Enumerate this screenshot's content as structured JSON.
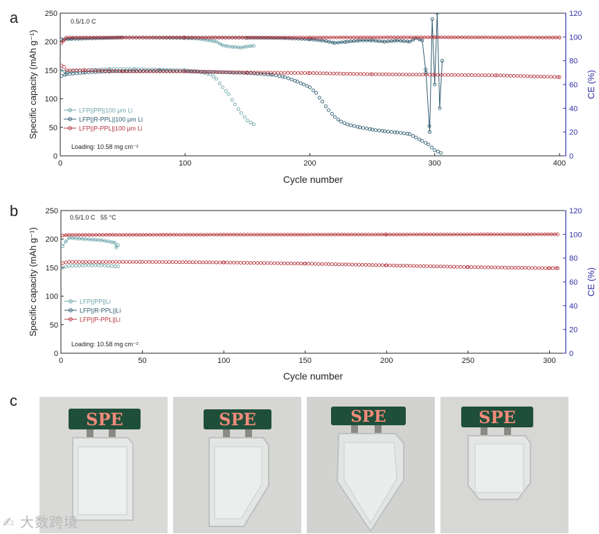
{
  "colors": {
    "pp": "#6aa3a8",
    "rppl": "#2d5a6e",
    "pppl": "#b5343c",
    "ce_axis": "#2f2fa8",
    "axis": "#222222"
  },
  "chart_data": [
    {
      "panel": "a",
      "type": "scatter",
      "xlabel": "Cycle number",
      "ylabel": "Specific capacity (mAh g⁻¹)",
      "y2label": "CE (%)",
      "xlim": [
        0,
        405
      ],
      "ylim": [
        0,
        250
      ],
      "y2lim": [
        0,
        120
      ],
      "xticks": [
        "0",
        "100",
        "200",
        "300",
        "400"
      ],
      "yticks": [
        "0",
        "50",
        "100",
        "150",
        "200",
        "250"
      ],
      "y2ticks": [
        "0",
        "20",
        "40",
        "60",
        "80",
        "100",
        "120"
      ],
      "annotation_rate": "0.5/1.0 C",
      "annotation_loading": "Loading: 10.58 mg cm⁻²",
      "series": [
        {
          "name": "LFP||PP||100 μm Li",
          "color_key": "pp",
          "capacity": [
            [
              1,
              150
            ],
            [
              5,
              147
            ],
            [
              20,
              150
            ],
            [
              40,
              152
            ],
            [
              60,
              152
            ],
            [
              80,
              151
            ],
            [
              100,
              150
            ],
            [
              110,
              148
            ],
            [
              120,
              143
            ],
            [
              125,
              135
            ],
            [
              130,
              120
            ],
            [
              135,
              108
            ],
            [
              140,
              90
            ],
            [
              145,
              75
            ],
            [
              150,
              62
            ],
            [
              155,
              55
            ]
          ],
          "ce": [
            [
              1,
              98
            ],
            [
              10,
              99
            ],
            [
              50,
              99.5
            ],
            [
              100,
              99
            ],
            [
              110,
              98.5
            ],
            [
              120,
              97
            ],
            [
              125,
              96
            ],
            [
              130,
              93
            ],
            [
              135,
              92
            ],
            [
              140,
              91.5
            ],
            [
              145,
              91
            ],
            [
              150,
              92
            ],
            [
              155,
              92.5
            ]
          ]
        },
        {
          "name": "LFP||R-PPL||100 μm Li",
          "color_key": "rppl",
          "capacity": [
            [
              1,
              140
            ],
            [
              5,
              143
            ],
            [
              20,
              146
            ],
            [
              40,
              148
            ],
            [
              80,
              149
            ],
            [
              120,
              147
            ],
            [
              150,
              145
            ],
            [
              170,
              142
            ],
            [
              180,
              138
            ],
            [
              190,
              130
            ],
            [
              195,
              125
            ],
            [
              200,
              120
            ],
            [
              205,
              110
            ],
            [
              210,
              95
            ],
            [
              215,
              80
            ],
            [
              220,
              68
            ],
            [
              225,
              60
            ],
            [
              230,
              55
            ],
            [
              240,
              50
            ],
            [
              250,
              46
            ],
            [
              260,
              43
            ],
            [
              270,
              41
            ],
            [
              280,
              38
            ],
            [
              285,
              32
            ],
            [
              290,
              26
            ],
            [
              295,
              20
            ],
            [
              300,
              10
            ],
            [
              305,
              5
            ]
          ],
          "ce": [
            [
              1,
              98
            ],
            [
              50,
              99.5
            ],
            [
              100,
              99.5
            ],
            [
              150,
              99.3
            ],
            [
              180,
              99
            ],
            [
              200,
              98
            ],
            [
              210,
              97
            ],
            [
              220,
              95
            ],
            [
              230,
              96
            ],
            [
              240,
              97
            ],
            [
              250,
              97
            ],
            [
              260,
              96
            ],
            [
              270,
              97
            ],
            [
              280,
              96
            ],
            [
              285,
              99
            ],
            [
              290,
              97
            ],
            [
              293,
              70
            ],
            [
              296,
              20
            ],
            [
              298,
              115
            ],
            [
              300,
              60
            ],
            [
              302,
              120
            ],
            [
              304,
              40
            ],
            [
              306,
              80
            ]
          ]
        },
        {
          "name": "LFP||P-PPL||100 μm Li",
          "color_key": "pppl",
          "capacity": [
            [
              1,
              158
            ],
            [
              3,
              156
            ],
            [
              5,
              150
            ],
            [
              20,
              150
            ],
            [
              50,
              148
            ],
            [
              100,
              148
            ],
            [
              150,
              146
            ],
            [
              200,
              145
            ],
            [
              250,
              143
            ],
            [
              300,
              142
            ],
            [
              350,
              141
            ],
            [
              400,
              138
            ]
          ],
          "ce": [
            [
              1,
              95
            ],
            [
              3,
              97
            ],
            [
              5,
              99.5
            ],
            [
              50,
              99.5
            ],
            [
              100,
              99.5
            ],
            [
              200,
              99.5
            ],
            [
              300,
              99.7
            ],
            [
              400,
              99.5
            ]
          ]
        }
      ]
    },
    {
      "panel": "b",
      "type": "scatter",
      "xlabel": "Cycle number",
      "ylabel": "Specific capacity (mAh g⁻¹)",
      "y2label": "CE (%)",
      "xlim": [
        0,
        310
      ],
      "ylim": [
        0,
        250
      ],
      "y2lim": [
        0,
        120
      ],
      "xticks": [
        "0",
        "50",
        "100",
        "150",
        "200",
        "250",
        "300"
      ],
      "yticks": [
        "0",
        "50",
        "100",
        "150",
        "200",
        "250"
      ],
      "y2ticks": [
        "0",
        "20",
        "40",
        "60",
        "80",
        "100",
        "120"
      ],
      "annotation_rate": "0.5/1.0 C   55 °C",
      "annotation_loading": "Loading: 10.58 mg cm⁻²",
      "series": [
        {
          "name": "LFP||PP||Li",
          "color_key": "pp",
          "capacity": [
            [
              1,
              150
            ],
            [
              5,
              153
            ],
            [
              15,
              154
            ],
            [
              25,
              154
            ],
            [
              35,
              152
            ]
          ],
          "ce": [
            [
              1,
              90
            ],
            [
              3,
              94
            ],
            [
              5,
              97
            ],
            [
              15,
              96
            ],
            [
              25,
              95
            ],
            [
              33,
              93
            ],
            [
              34,
              89
            ],
            [
              35,
              91
            ]
          ]
        },
        {
          "name": "LFP||R-PPL||Li",
          "color_key": "rppl",
          "capacity": [],
          "ce": []
        },
        {
          "name": "LFP||P-PPL||Li",
          "color_key": "pppl",
          "capacity": [
            [
              1,
              158
            ],
            [
              5,
              160
            ],
            [
              50,
              160
            ],
            [
              100,
              159
            ],
            [
              150,
              157
            ],
            [
              200,
              154
            ],
            [
              250,
              151
            ],
            [
              300,
              149
            ],
            [
              305,
              149
            ]
          ],
          "ce": [
            [
              1,
              99
            ],
            [
              5,
              99.5
            ],
            [
              100,
              99.7
            ],
            [
              200,
              99.8
            ],
            [
              305,
              100
            ]
          ]
        }
      ]
    }
  ],
  "panel_labels": {
    "a": "a",
    "b": "b",
    "c": "c"
  },
  "photos": {
    "led_text": "SPE",
    "items": [
      {
        "cut": "intact"
      },
      {
        "cut": "corner-cut"
      },
      {
        "cut": "v-cut"
      },
      {
        "cut": "bottom-corners-cut"
      }
    ]
  },
  "watermark": "大数跨境"
}
